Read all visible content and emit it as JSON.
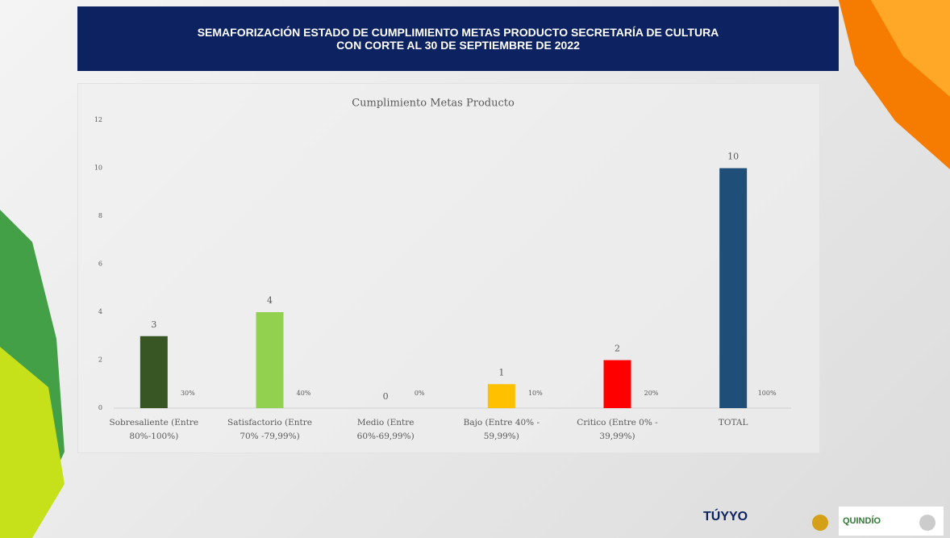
{
  "header": {
    "title": [
      "SEMAFORIZACIÓN  ESTADO DE CUMPLIMIENTO METAS PRODUCTO SECRETARÍA DE CULTURA",
      "CON CORTE AL 30 DE SEPTIEMBRE DE 2022"
    ]
  },
  "chart_data": {
    "type": "bar",
    "title": "Cumplimiento Metas Producto",
    "categories": [
      "Sobresaliente  (Entre 80%-100%)",
      "Satisfactorio (Entre 70% -79,99%)",
      "Medio (Entre 60%-69,99%)",
      "Bajo (Entre 40% - 59,99%)",
      "Critico (Entre 0% - 39,99%)",
      "TOTAL"
    ],
    "values": [
      3,
      4,
      0,
      1,
      2,
      10
    ],
    "colors": [
      "#375623",
      "#92d050",
      null,
      "#ffc000",
      "#ff0000",
      "#1f4e79"
    ],
    "shares": {
      "values": [
        30,
        40,
        0,
        10,
        20,
        100
      ],
      "value_labels": [
        "30%",
        "40%",
        "0%",
        "10%",
        "20%",
        "100%"
      ]
    },
    "ylim": [
      0,
      12
    ],
    "yticks": [
      0,
      2,
      4,
      6,
      8,
      10,
      12
    ],
    "grid": false
  },
  "footer": {
    "logos": [
      "TÚYYO",
      "QUINDÍO"
    ]
  }
}
